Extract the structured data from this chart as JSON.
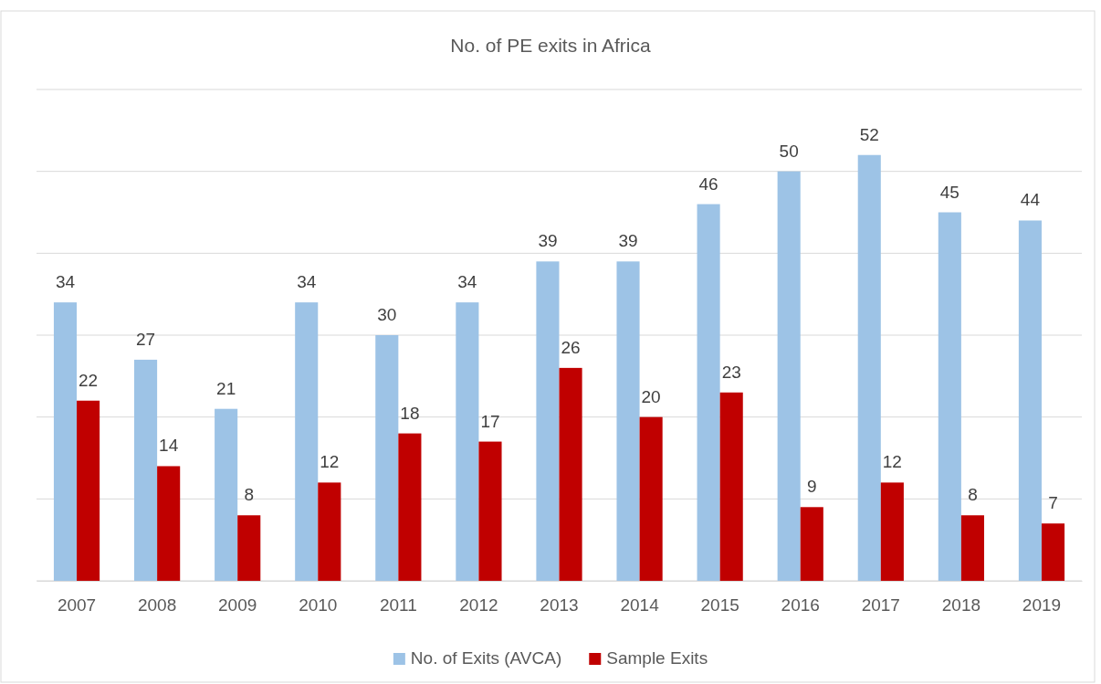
{
  "chart_data": {
    "type": "bar",
    "title": "No. of PE exits in Africa",
    "categories": [
      "2007",
      "2008",
      "2009",
      "2010",
      "2011",
      "2012",
      "2013",
      "2014",
      "2015",
      "2016",
      "2017",
      "2018",
      "2019"
    ],
    "series": [
      {
        "name": "No. of Exits (AVCA)",
        "color": "#9dc3e6",
        "values": [
          34,
          27,
          21,
          34,
          30,
          34,
          39,
          39,
          46,
          50,
          52,
          45,
          44
        ]
      },
      {
        "name": "Sample Exits",
        "color": "#c00000",
        "values": [
          22,
          14,
          8,
          12,
          18,
          17,
          26,
          20,
          23,
          9,
          12,
          8,
          7
        ]
      }
    ],
    "ylim": [
      0,
      60
    ],
    "yticks": [
      {
        "value": 0,
        "label": null
      },
      {
        "value": 10,
        "label": null
      },
      {
        "value": 20,
        "label": null
      },
      {
        "value": 30,
        "label": null
      },
      {
        "value": 40,
        "label": null
      },
      {
        "value": 50,
        "label": null
      },
      {
        "value": 60,
        "label": null
      }
    ],
    "tick_labels": "x",
    "grid": "y",
    "data_labels": true,
    "legend": "bottom"
  }
}
